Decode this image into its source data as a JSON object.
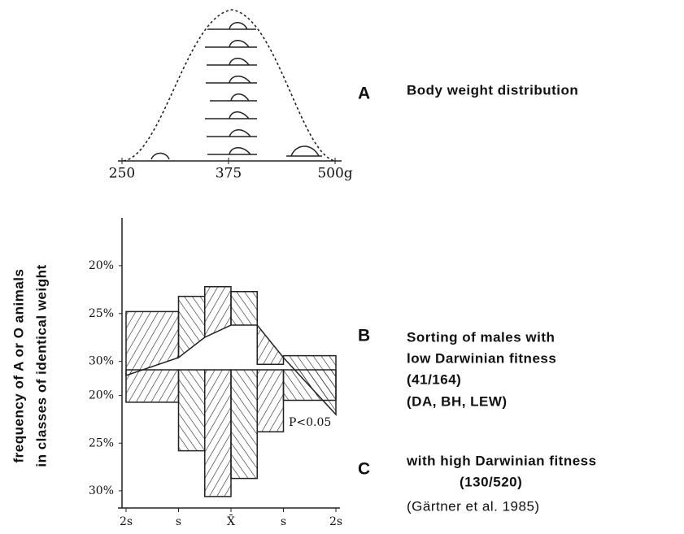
{
  "chart_data": [
    {
      "type": "curve",
      "label": "A",
      "caption": [
        "Body weight distribution"
      ],
      "xlim": [
        250,
        500
      ],
      "xticks": [
        250,
        375,
        {
          "value": 500,
          "label": "500g"
        }
      ]
    },
    {
      "type": "histogram",
      "label": "B",
      "caption": [
        "Sorting of males with",
        "low Darwinian fitness",
        "(41/164)",
        "(DA, BH, LEW)"
      ],
      "ylabel": [
        "frequency of A or O animals",
        "in classes of identical weight"
      ],
      "annotation": "P<0.05",
      "bins": [
        -2,
        -1,
        -0.5,
        0,
        0.5,
        1,
        2
      ],
      "values": [
        24.8,
        23.2,
        22.2,
        22.7,
        30.3,
        29.4
      ],
      "color": "#222222",
      "xlim": [
        -2,
        2
      ],
      "ylim": [
        15,
        31.3
      ],
      "yticks": [
        {
          "value": 30,
          "label": "30%"
        },
        {
          "value": 25,
          "label": "25%"
        },
        {
          "value": 20,
          "label": "20%"
        }
      ]
    },
    {
      "type": "histogram",
      "label": "C",
      "caption": [
        "with high Darwinian fitness",
        "(130/520)",
        "(Gärtner et al. 1985)"
      ],
      "bins": [
        -2,
        -1,
        -0.5,
        0,
        0.5,
        1,
        2
      ],
      "values": [
        20.7,
        25.8,
        30.6,
        28.7,
        23.8,
        20.5
      ],
      "color": "#222222",
      "xlim": [
        -2,
        2
      ],
      "ylim": [
        17.3,
        31.8
      ],
      "yticks": [
        {
          "value": 30,
          "label": "30%"
        },
        {
          "value": 25,
          "label": "25%"
        },
        {
          "value": 20,
          "label": "20%"
        }
      ],
      "xticks": [
        {
          "value": -2,
          "label": "2s"
        },
        {
          "value": -1,
          "label": "s"
        },
        {
          "value": 0,
          "label": "X̄"
        },
        {
          "value": 1,
          "label": "s"
        },
        {
          "value": 2,
          "label": "2s"
        }
      ]
    }
  ]
}
